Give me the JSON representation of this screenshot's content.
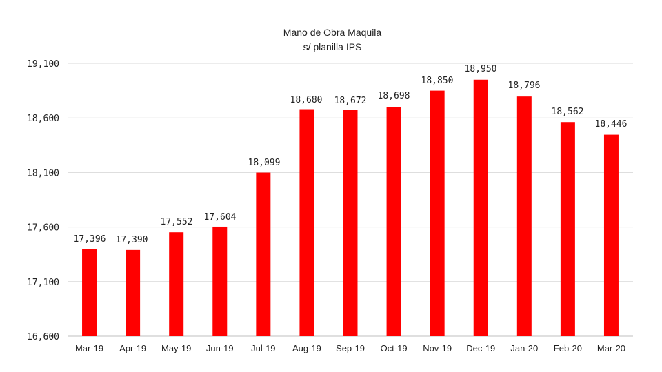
{
  "chart_data": {
    "type": "bar",
    "title": "Mano de Obra Maquila",
    "subtitle": "s/ planilla IPS",
    "xlabel": "",
    "ylabel": "",
    "ylim": [
      16600,
      19100
    ],
    "yticks": [
      16600,
      17100,
      17600,
      18100,
      18600,
      19100
    ],
    "ytick_labels": [
      "16,600",
      "17,100",
      "17,600",
      "18,100",
      "18,600",
      "19,100"
    ],
    "grid": true,
    "legend": "none",
    "bar_color": "#ff0000",
    "categories": [
      "Mar-19",
      "Apr-19",
      "May-19",
      "Jun-19",
      "Jul-19",
      "Aug-19",
      "Sep-19",
      "Oct-19",
      "Nov-19",
      "Dec-19",
      "Jan-20",
      "Feb-20",
      "Mar-20"
    ],
    "values": [
      17396,
      17390,
      17552,
      17604,
      18099,
      18680,
      18672,
      18698,
      18850,
      18950,
      18796,
      18562,
      18446
    ],
    "data_labels": [
      "17,396",
      "17,390",
      "17,552",
      "17,604",
      "18,099",
      "18,680",
      "18,672",
      "18,698",
      "18,850",
      "18,950",
      "18,796",
      "18,562",
      "18,446"
    ]
  }
}
